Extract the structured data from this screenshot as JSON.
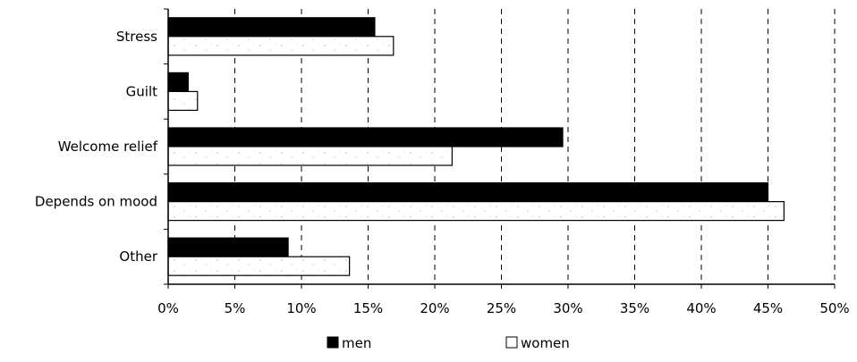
{
  "chart_data": {
    "type": "bar",
    "orientation": "horizontal",
    "categories": [
      "Stress",
      "Guilt",
      "Welcome relief",
      "Depends on mood",
      "Other"
    ],
    "series": [
      {
        "name": "men",
        "values": [
          15.5,
          1.5,
          29.6,
          45.0,
          9.0
        ],
        "color": "#000000"
      },
      {
        "name": "women",
        "values": [
          16.9,
          2.2,
          21.3,
          46.2,
          13.6
        ],
        "color": "#ffffff"
      }
    ],
    "xlim": [
      0,
      50
    ],
    "xticks": [
      0,
      5,
      10,
      15,
      20,
      25,
      30,
      35,
      40,
      45,
      50
    ],
    "tick_labels": [
      "0%",
      "5%",
      "10%",
      "15%",
      "20%",
      "25%",
      "30%",
      "35%",
      "40%",
      "45%",
      "50%"
    ],
    "grid": "vertical dashed",
    "legend": "bottom-center"
  }
}
